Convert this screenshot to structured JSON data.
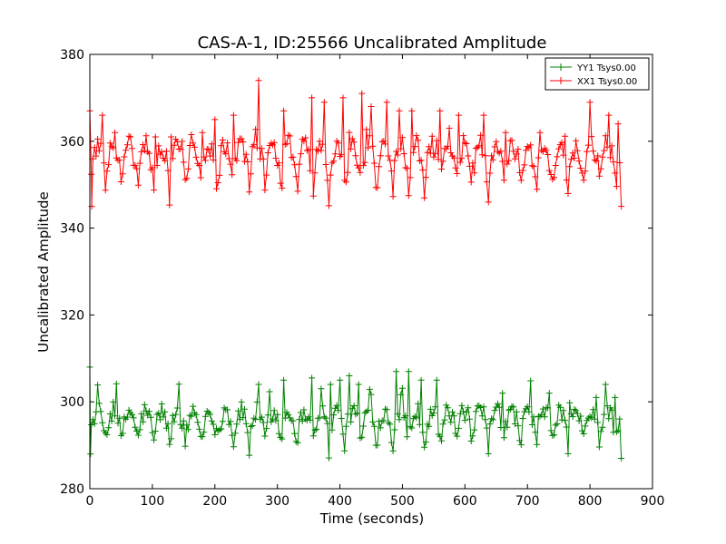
{
  "chart_data": {
    "type": "line",
    "title": "CAS-A-1, ID:25566 Uncalibrated Amplitude",
    "xlabel": "Time (seconds)",
    "ylabel": "Uncalibrated Amplitude",
    "xlim": [
      0,
      900
    ],
    "ylim": [
      280,
      380
    ],
    "xticks": [
      0,
      100,
      200,
      300,
      400,
      500,
      600,
      700,
      800,
      900
    ],
    "yticks": [
      280,
      300,
      320,
      340,
      360,
      380
    ],
    "grid": false,
    "legend_position": "top-right",
    "marker": "+",
    "series": [
      {
        "name": "YY1 Tsys0.00",
        "color": "#008000",
        "x_start": 0,
        "x_end": 850,
        "x_step": 2.5,
        "baseline": 289,
        "period": 25.5,
        "mean": 294.5,
        "amp": 6.5,
        "noise": 2.2,
        "spikes": [
          [
            0,
            308
          ],
          [
            1,
            288
          ],
          [
            270,
            304
          ],
          [
            310,
            305
          ],
          [
            355,
            305.5
          ],
          [
            370,
            303
          ],
          [
            385,
            304
          ],
          [
            400,
            305
          ],
          [
            415,
            306
          ],
          [
            430,
            304
          ],
          [
            490,
            307
          ],
          [
            510,
            307
          ],
          [
            530,
            305
          ],
          [
            555,
            305
          ],
          [
            660,
            302
          ],
          [
            735,
            302
          ],
          [
            810,
            301
          ],
          [
            825,
            304
          ],
          [
            840,
            301
          ],
          [
            850,
            287
          ]
        ]
      },
      {
        "name": "XX1 Tsys0.00",
        "color": "#ff0000",
        "x_start": 0,
        "x_end": 850,
        "x_step": 2.5,
        "baseline": 347,
        "period": 25.5,
        "mean": 354.5,
        "amp": 6,
        "noise": 2.5,
        "spikes": [
          [
            0,
            367
          ],
          [
            3,
            345
          ],
          [
            20,
            366
          ],
          [
            40,
            362
          ],
          [
            65,
            361
          ],
          [
            105,
            361
          ],
          [
            130,
            361
          ],
          [
            180,
            362
          ],
          [
            200,
            365
          ],
          [
            230,
            366
          ],
          [
            270,
            374
          ],
          [
            310,
            367
          ],
          [
            355,
            370
          ],
          [
            375,
            369
          ],
          [
            405,
            370
          ],
          [
            435,
            371
          ],
          [
            450,
            368
          ],
          [
            475,
            369
          ],
          [
            495,
            367
          ],
          [
            515,
            367
          ],
          [
            560,
            367
          ],
          [
            575,
            363
          ],
          [
            590,
            366
          ],
          [
            630,
            366
          ],
          [
            665,
            362
          ],
          [
            720,
            362
          ],
          [
            800,
            369
          ],
          [
            830,
            366
          ],
          [
            845,
            364
          ],
          [
            850,
            345
          ]
        ]
      }
    ]
  }
}
